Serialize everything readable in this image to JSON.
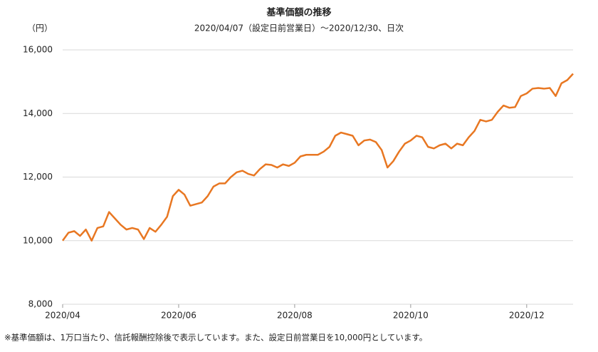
{
  "chart_data": {
    "type": "line",
    "title": "基準価額の推移",
    "subtitle": "2020/04/07（設定日前営業日）～2020/12/30、日次",
    "y_unit": "（円）",
    "footnote": "※基準価額は、1万口当たり、信託報酬控除後で表示しています。また、設定日前営業日を10,000円としています。",
    "categories": [
      "2020/04",
      null,
      null,
      null,
      null,
      null,
      null,
      null,
      null,
      null,
      null,
      null,
      null,
      null,
      null,
      null,
      null,
      null,
      null,
      null,
      "2020/06",
      null,
      null,
      null,
      null,
      null,
      null,
      null,
      null,
      null,
      null,
      null,
      null,
      null,
      null,
      null,
      null,
      null,
      null,
      null,
      "2020/08",
      null,
      null,
      null,
      null,
      null,
      null,
      null,
      null,
      null,
      null,
      null,
      null,
      null,
      null,
      null,
      null,
      null,
      null,
      null,
      "2020/10",
      null,
      null,
      null,
      null,
      null,
      null,
      null,
      null,
      null,
      null,
      null,
      null,
      null,
      null,
      null,
      null,
      null,
      null,
      null,
      "2020/12",
      null,
      null,
      null,
      null,
      null,
      null,
      null,
      null
    ],
    "values": [
      10000,
      10250,
      10300,
      10150,
      10350,
      10000,
      10400,
      10450,
      10900,
      10700,
      10500,
      10350,
      10400,
      10350,
      10050,
      10400,
      10280,
      10500,
      10750,
      11400,
      11600,
      11450,
      11100,
      11150,
      11200,
      11400,
      11700,
      11800,
      11800,
      12000,
      12150,
      12200,
      12100,
      12050,
      12250,
      12400,
      12380,
      12300,
      12400,
      12350,
      12450,
      12650,
      12700,
      12700,
      12700,
      12800,
      12950,
      13300,
      13400,
      13350,
      13300,
      13000,
      13150,
      13180,
      13100,
      12850,
      12300,
      12500,
      12800,
      13050,
      13150,
      13300,
      13250,
      12950,
      12900,
      13000,
      13050,
      12900,
      13050,
      13000,
      13250,
      13450,
      13800,
      13750,
      13800,
      14050,
      14250,
      14180,
      14200,
      14550,
      14630,
      14780,
      14800,
      14780,
      14800,
      14550,
      14950,
      15050,
      15250
    ],
    "color": "#e87722",
    "ylim": [
      8000,
      16000
    ],
    "yticks": [
      {
        "value": 8000,
        "label": "8,000"
      },
      {
        "value": 10000,
        "label": "10,000"
      },
      {
        "value": 12000,
        "label": "12,000"
      },
      {
        "value": 14000,
        "label": "14,000"
      },
      {
        "value": 16000,
        "label": "16,000"
      }
    ],
    "grid": true
  }
}
